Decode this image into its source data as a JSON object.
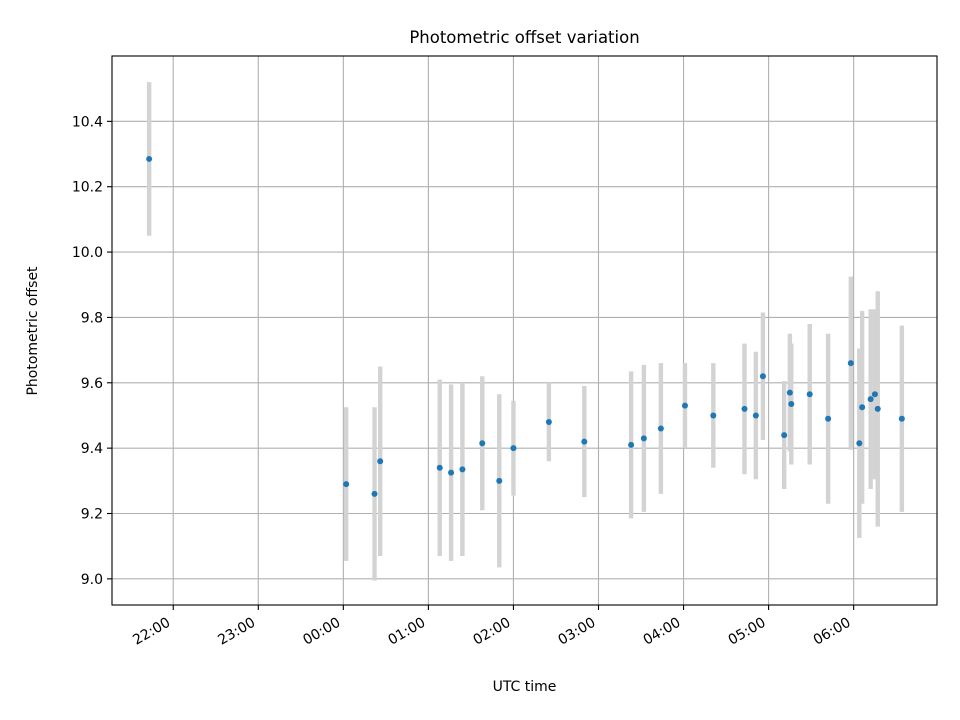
{
  "chart_data": {
    "type": "scatter",
    "title": "Photometric offset variation",
    "xlabel": "UTC time",
    "ylabel": "Photometric offset",
    "grid": true,
    "x_ticks": [
      "22:00",
      "23:00",
      "00:00",
      "01:00",
      "02:00",
      "03:00",
      "04:00",
      "05:00",
      "06:00"
    ],
    "x_tick_hours": [
      22,
      23,
      24,
      25,
      26,
      27,
      28,
      29,
      30
    ],
    "xlim_hours": [
      21.28,
      30.98
    ],
    "y_ticks": [
      "9.0",
      "9.2",
      "9.4",
      "9.6",
      "9.8",
      "10.0",
      "10.2",
      "10.4"
    ],
    "ylim": [
      8.92,
      10.6
    ],
    "colors": {
      "points": "#1f77b4",
      "error_bars": "#d3d3d3",
      "grid": "#b0b0b0"
    },
    "series": [
      {
        "points": [
          {
            "x": "21:43",
            "y": 10.285,
            "err": 0.235
          },
          {
            "x": "00:02",
            "y": 9.29,
            "err": 0.235
          },
          {
            "x": "00:22",
            "y": 9.26,
            "err": 0.265
          },
          {
            "x": "00:26",
            "y": 9.36,
            "err": 0.29
          },
          {
            "x": "01:08",
            "y": 9.34,
            "err": 0.27
          },
          {
            "x": "01:16",
            "y": 9.325,
            "err": 0.27
          },
          {
            "x": "01:24",
            "y": 9.335,
            "err": 0.265
          },
          {
            "x": "01:38",
            "y": 9.415,
            "err": 0.205
          },
          {
            "x": "01:50",
            "y": 9.3,
            "err": 0.265
          },
          {
            "x": "02:00",
            "y": 9.4,
            "err": 0.145
          },
          {
            "x": "02:25",
            "y": 9.48,
            "err": 0.12
          },
          {
            "x": "02:50",
            "y": 9.42,
            "err": 0.17
          },
          {
            "x": "03:23",
            "y": 9.41,
            "err": 0.225
          },
          {
            "x": "03:32",
            "y": 9.43,
            "err": 0.225
          },
          {
            "x": "03:44",
            "y": 9.46,
            "err": 0.2
          },
          {
            "x": "04:01",
            "y": 9.53,
            "err": 0.13
          },
          {
            "x": "04:21",
            "y": 9.5,
            "err": 0.16
          },
          {
            "x": "04:43",
            "y": 9.52,
            "err": 0.2
          },
          {
            "x": "04:51",
            "y": 9.5,
            "err": 0.195
          },
          {
            "x": "04:56",
            "y": 9.62,
            "err": 0.195
          },
          {
            "x": "05:11",
            "y": 9.44,
            "err": 0.165
          },
          {
            "x": "05:15",
            "y": 9.57,
            "err": 0.18
          },
          {
            "x": "05:16",
            "y": 9.535,
            "err": 0.185
          },
          {
            "x": "05:29",
            "y": 9.565,
            "err": 0.215
          },
          {
            "x": "05:42",
            "y": 9.49,
            "err": 0.26
          },
          {
            "x": "05:58",
            "y": 9.66,
            "err": 0.265
          },
          {
            "x": "06:04",
            "y": 9.415,
            "err": 0.29
          },
          {
            "x": "06:06",
            "y": 9.525,
            "err": 0.295
          },
          {
            "x": "06:12",
            "y": 9.55,
            "err": 0.275
          },
          {
            "x": "06:15",
            "y": 9.565,
            "err": 0.26
          },
          {
            "x": "06:17",
            "y": 9.52,
            "err": 0.36
          },
          {
            "x": "06:34",
            "y": 9.49,
            "err": 0.285
          }
        ]
      }
    ]
  }
}
